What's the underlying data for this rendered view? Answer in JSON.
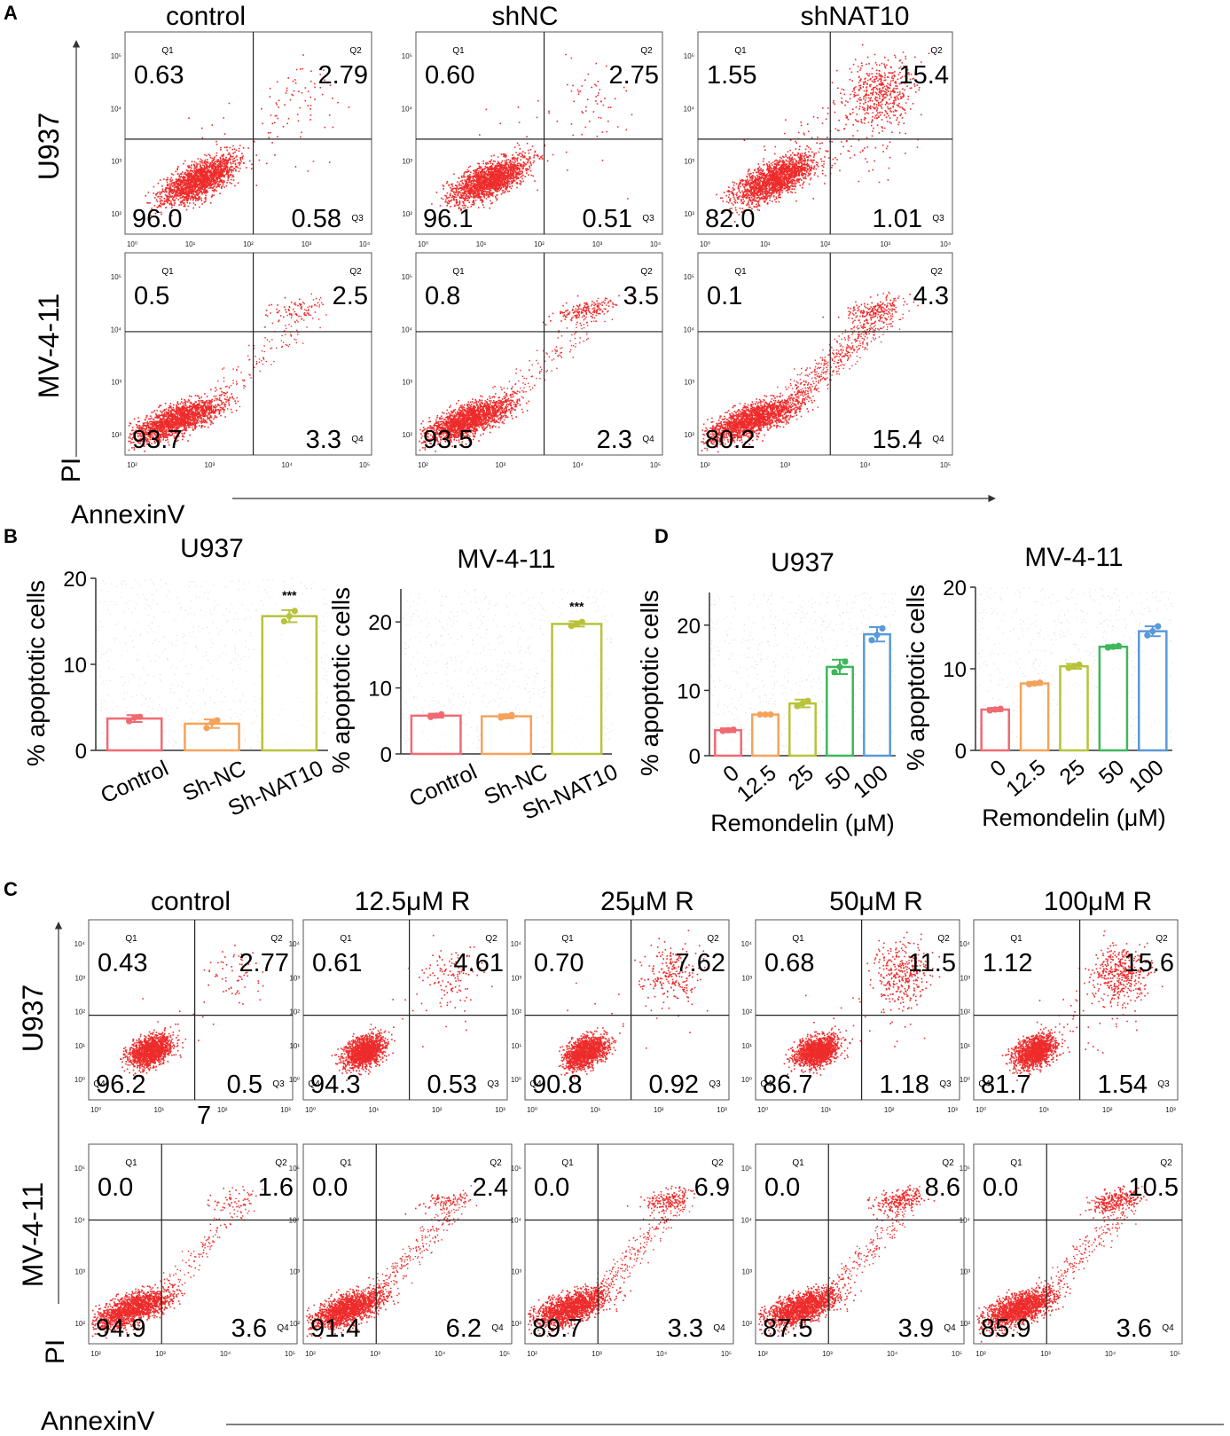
{
  "panels": {
    "A": "A",
    "B": "B",
    "C": "C",
    "D": "D"
  },
  "quad_labels": {
    "q1": "Q1",
    "q2": "Q2",
    "q3": "Q3",
    "q4": "Q4"
  },
  "colors": {
    "dots": "#ee2b2b",
    "control": "#f06a72",
    "sh_nc": "#f5a35a",
    "sh_nat10": "#b8c23a",
    "r0": "#f06a72",
    "r12": "#f5a35a",
    "r25": "#b8c23a",
    "r50": "#3db85a",
    "r100": "#5a9ad8"
  },
  "panel_a": {
    "columns": [
      "control",
      "shNC",
      "shNAT10"
    ],
    "rows": [
      "U937",
      "MV-4-11"
    ],
    "y_axis_name": "PI",
    "x_axis_name": "AnnexinV",
    "u937": [
      {
        "q1": "0.63",
        "q2": "2.79",
        "q4": "96.0",
        "q3": "0.58"
      },
      {
        "q1": "0.60",
        "q2": "2.75",
        "q4": "96.1",
        "q3": "0.51"
      },
      {
        "q1": "1.55",
        "q2": "15.4",
        "q4": "82.0",
        "q3": "1.01"
      }
    ],
    "mv411": [
      {
        "q1": "0.5",
        "q2": "2.5",
        "q3": "93.7",
        "q4": "3.3"
      },
      {
        "q1": "0.8",
        "q2": "3.5",
        "q3": "93.5",
        "q4": "2.3"
      },
      {
        "q1": "0.1",
        "q2": "4.3",
        "q3": "80.2",
        "q4": "15.4"
      }
    ],
    "u937_ticks": [
      "10⁰",
      "10¹",
      "10²",
      "10³",
      "10⁴"
    ],
    "u937_yticks": [
      "10⁵",
      "10⁴",
      "10³",
      "10²"
    ],
    "mv_ticks": [
      "10²",
      "10³",
      "10⁴",
      "10⁵"
    ],
    "mv_yticks": [
      "10⁵",
      "10⁴",
      "10³",
      "10²"
    ]
  },
  "panel_c": {
    "columns": [
      "control",
      "12.5μM R",
      "25μM R",
      "50μM R",
      "100μM R"
    ],
    "rows": [
      "U937",
      "MV-4-11"
    ],
    "y_axis_name": "PI",
    "x_axis_name": "AnnexinV",
    "stray_label": "7",
    "u937": [
      {
        "q1": "0.43",
        "q2": "2.77",
        "q4": "96.2",
        "q3": "0.5"
      },
      {
        "q1": "0.61",
        "q2": "4.61",
        "q4": "94.3",
        "q3": "0.53"
      },
      {
        "q1": "0.70",
        "q2": "7.62",
        "q4": "90.8",
        "q3": "0.92"
      },
      {
        "q1": "0.68",
        "q2": "11.5",
        "q4": "86.7",
        "q3": "1.18"
      },
      {
        "q1": "1.12",
        "q2": "15.6",
        "q4": "81.7",
        "q3": "1.54"
      }
    ],
    "mv411": [
      {
        "q1": "0.0",
        "q2": "1.6",
        "q3": "94.9",
        "q4": "3.6"
      },
      {
        "q1": "0.0",
        "q2": "2.4",
        "q3": "91.4",
        "q4": "6.2"
      },
      {
        "q1": "0.0",
        "q2": "6.9",
        "q3": "89.7",
        "q4": "3.3"
      },
      {
        "q1": "0.0",
        "q2": "8.6",
        "q3": "87.5",
        "q4": "3.9"
      },
      {
        "q1": "0.0",
        "q2": "10.5",
        "q3": "85.9",
        "q4": "3.6"
      }
    ],
    "u937_ticks": [
      "10⁰",
      "10¹",
      "10²",
      "10³"
    ],
    "u937_yticks": [
      "10⁴",
      "10³",
      "10²",
      "10¹",
      "10⁰"
    ],
    "mv_ticks": [
      "10²",
      "10³",
      "10⁴",
      "10⁵"
    ],
    "mv_yticks": [
      "10⁵",
      "10⁴",
      "10³",
      "10²"
    ]
  },
  "chart_data": [
    {
      "type": "bar",
      "id": "B-U937",
      "title": "U937",
      "ylabel": "% apoptotic cells",
      "xlabel": "",
      "categories": [
        "Control",
        "Sh-NC",
        "Sh-NAT10"
      ],
      "values": [
        3.7,
        3.1,
        15.6
      ],
      "errors": [
        0.4,
        0.5,
        0.7
      ],
      "points": [
        [
          3.4,
          3.8,
          3.9
        ],
        [
          2.6,
          3.2,
          3.5
        ],
        [
          15.0,
          15.6,
          16.2
        ]
      ],
      "significance": [
        "",
        "",
        "***"
      ],
      "ylim": [
        0,
        20
      ],
      "yticks": [
        0,
        10,
        20
      ]
    },
    {
      "type": "bar",
      "id": "B-MV411",
      "title": "MV-4-11",
      "ylabel": "% apoptotic cells",
      "xlabel": "",
      "categories": [
        "Control",
        "Sh-NC",
        "Sh-NAT10"
      ],
      "values": [
        5.8,
        5.7,
        19.7
      ],
      "errors": [
        0.3,
        0.3,
        0.4
      ],
      "points": [
        [
          5.6,
          5.8,
          6.0
        ],
        [
          5.5,
          5.7,
          5.9
        ],
        [
          19.4,
          19.7,
          20.0
        ]
      ],
      "significance": [
        "",
        "",
        "***"
      ],
      "ylim": [
        0,
        25
      ],
      "yticks": [
        0,
        10,
        20
      ]
    },
    {
      "type": "bar",
      "id": "D-U937",
      "title": "U937",
      "ylabel": "% apoptotic cells",
      "xlabel": "Remondelin (μM)",
      "categories": [
        "0",
        "12.5",
        "25",
        "50",
        "100"
      ],
      "values": [
        3.9,
        6.3,
        8.0,
        13.6,
        18.6
      ],
      "errors": [
        0.3,
        0.1,
        0.6,
        1.1,
        1.1
      ],
      "points": [
        [
          3.8,
          3.9,
          4.0
        ],
        [
          6.3,
          6.3,
          6.3
        ],
        [
          7.6,
          8.0,
          8.4
        ],
        [
          12.8,
          13.6,
          14.4
        ],
        [
          17.7,
          18.5,
          19.5
        ]
      ],
      "ylim": [
        0,
        25
      ],
      "yticks": [
        0,
        10,
        20
      ]
    },
    {
      "type": "bar",
      "id": "D-MV411",
      "title": "MV-4-11",
      "ylabel": "% apoptotic cells",
      "xlabel": "Remondelin (μM)",
      "categories": [
        "0",
        "12.5",
        "25",
        "50",
        "100"
      ],
      "values": [
        5.0,
        8.2,
        10.3,
        12.7,
        14.6
      ],
      "errors": [
        0.2,
        0.2,
        0.3,
        0.2,
        0.6
      ],
      "points": [
        [
          4.9,
          5.0,
          5.1
        ],
        [
          8.1,
          8.2,
          8.3
        ],
        [
          10.1,
          10.3,
          10.5
        ],
        [
          12.6,
          12.7,
          12.8
        ],
        [
          14.1,
          14.6,
          15.2
        ]
      ],
      "ylim": [
        0,
        20
      ],
      "yticks": [
        0,
        10,
        20
      ]
    }
  ]
}
